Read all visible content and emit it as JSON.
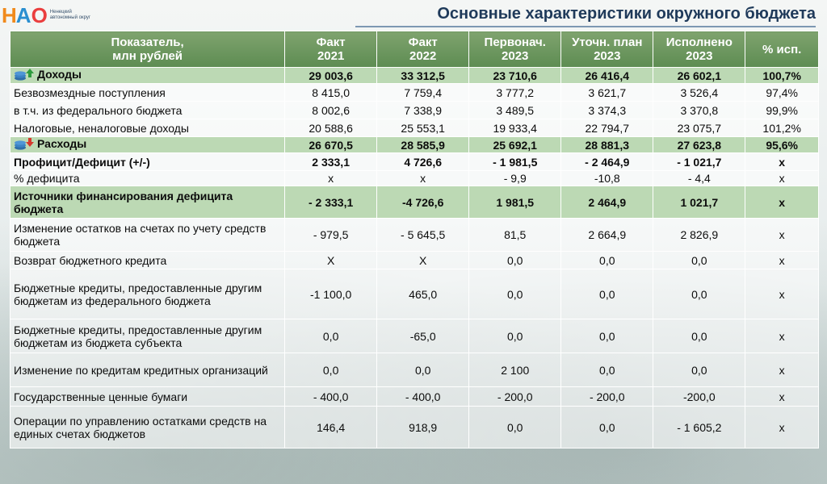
{
  "logo": {
    "text_n": "Н",
    "text_a": "А",
    "text_o": "О",
    "caption": "Ненецкий автономный округ"
  },
  "page_title": "Основные характеристики окружного бюджета",
  "table": {
    "headers": [
      [
        "Показатель,",
        "млн рублей"
      ],
      [
        "Факт",
        "2021"
      ],
      [
        "Факт",
        "2022"
      ],
      [
        "Первонач.",
        "2023"
      ],
      [
        "Уточн. план",
        "2023"
      ],
      [
        "Исполнено",
        "2023"
      ],
      [
        "% исп.",
        ""
      ]
    ],
    "rows": [
      {
        "label": "Доходы",
        "values": [
          "29 003,6",
          "33 312,5",
          "23 710,6",
          "26 416,4",
          "26 602,1",
          "100,7%"
        ]
      },
      {
        "label": "Безвозмездные поступления",
        "values": [
          "8 415,0",
          "7 759,4",
          "3 777,2",
          "3 621,7",
          "3 526,4",
          "97,4%"
        ]
      },
      {
        "label": "в т.ч. из федерального бюджета",
        "values": [
          "8 002,6",
          "7 338,9",
          "3 489,5",
          "3 374,3",
          "3 370,8",
          "99,9%"
        ]
      },
      {
        "label": "Налоговые, неналоговые доходы",
        "values": [
          "20 588,6",
          "25 553,1",
          "19 933,4",
          "22 794,7",
          "23 075,7",
          "101,2%"
        ]
      },
      {
        "label": "Расходы",
        "values": [
          "26 670,5",
          "28 585,9",
          "25 692,1",
          "28 881,3",
          "27 623,8",
          "95,6%"
        ]
      },
      {
        "label": "Профицит/Дефицит (+/-)",
        "values": [
          "2 333,1",
          "4 726,6",
          "- 1 981,5",
          "- 2 464,9",
          "- 1 021,7",
          "х"
        ]
      },
      {
        "label": "% дефицита",
        "values": [
          "х",
          "х",
          "- 9,9",
          "-10,8",
          "- 4,4",
          "х"
        ]
      },
      {
        "label": "Источники финансирования дефицита бюджета",
        "values": [
          "- 2 333,1",
          "-4 726,6",
          "1 981,5",
          "2 464,9",
          "1 021,7",
          "х"
        ]
      },
      {
        "label": "Изменение остатков на счетах по учету средств бюджета",
        "values": [
          "- 979,5",
          "- 5 645,5",
          "81,5",
          "2 664,9",
          "2 826,9",
          "х"
        ]
      },
      {
        "label": "Возврат бюджетного кредита",
        "values": [
          "Х",
          "Х",
          "0,0",
          "0,0",
          "0,0",
          "х"
        ]
      },
      {
        "label": "Бюджетные кредиты, предоставленные другим бюджетам из федерального бюджета",
        "values": [
          "-1 100,0",
          "465,0",
          "0,0",
          "0,0",
          "0,0",
          "х"
        ]
      },
      {
        "label": "Бюджетные кредиты, предоставленные другим бюджетам из бюджета субъекта",
        "values": [
          "0,0",
          "-65,0",
          "0,0",
          "0,0",
          "0,0",
          "х"
        ]
      },
      {
        "label": "Изменение по кредитам кредитных организаций",
        "values": [
          "0,0",
          "0,0",
          "2 100",
          "0,0",
          "0,0",
          "х"
        ]
      },
      {
        "label": "Государственные ценные бумаги",
        "values": [
          "- 400,0",
          "- 400,0",
          "- 200,0",
          "- 200,0",
          "-200,0",
          "х"
        ]
      },
      {
        "label": "Операции по управлению остатками средств на единых счетах бюджетов",
        "values": [
          "146,4",
          "918,9",
          "0,0",
          "0,0",
          "- 1 605,2",
          "х"
        ]
      }
    ]
  },
  "colors": {
    "header_green": "#5d8c52",
    "highlight_row": "#bcd9b4",
    "title": "#1f3a5a"
  },
  "icons": {
    "income": "coins-arrow-up-icon",
    "expense": "coins-arrow-down-icon"
  }
}
